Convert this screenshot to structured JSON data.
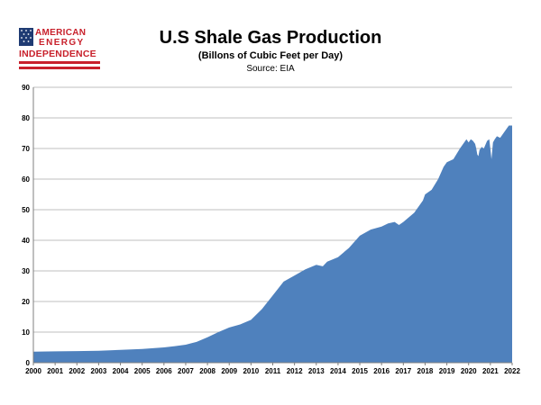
{
  "logo": {
    "line1": "AMERICAN",
    "line2": "ENERGY",
    "line3": "INDEPENDENCE",
    "flag_colors": {
      "blue": "#1f3b73",
      "red": "#c8202b"
    }
  },
  "chart_data": {
    "type": "area",
    "title": "U.S Shale Gas Production",
    "subtitle": "(Billons of Cubic Feet per Day)",
    "source": "Source: EIA",
    "xlabel": "",
    "ylabel": "",
    "xlim": [
      2000,
      2022
    ],
    "ylim": [
      0,
      90
    ],
    "y_ticks": [
      0,
      10,
      20,
      30,
      40,
      50,
      60,
      70,
      80,
      90
    ],
    "x_ticks": [
      "2000",
      "2001",
      "2002",
      "2003",
      "2004",
      "2005",
      "2006",
      "2007",
      "2008",
      "2009",
      "2010",
      "2011",
      "2012",
      "2013",
      "2014",
      "2015",
      "2016",
      "2017",
      "2018",
      "2019",
      "2020",
      "2021",
      "2022"
    ],
    "grid": true,
    "legend": "none",
    "fill_color": "#4f81bd",
    "series": [
      {
        "x": [
          2000,
          2001,
          2002,
          2003,
          2004,
          2005,
          2006,
          2006.5,
          2007,
          2007.5,
          2008,
          2008.5,
          2009,
          2009.5,
          2010,
          2010.5,
          2011,
          2011.5,
          2012,
          2012.5,
          2013,
          2013.3,
          2013.5,
          2014,
          2014.5,
          2015,
          2015.5,
          2016,
          2016.3,
          2016.6,
          2016.8,
          2017,
          2017.5,
          2017.9,
          2018,
          2018.3,
          2018.6,
          2018.85,
          2019,
          2019.3,
          2019.6,
          2019.9,
          2020,
          2020.1,
          2020.2,
          2020.3,
          2020.35,
          2020.4,
          2020.45,
          2020.5,
          2020.6,
          2020.7,
          2020.85,
          2020.95,
          2021.05,
          2021.12,
          2021.2,
          2021.3,
          2021.45,
          2021.6,
          2021.75,
          2021.85,
          2022
        ],
        "y": [
          3.6,
          3.7,
          3.8,
          3.9,
          4.2,
          4.5,
          5.0,
          5.4,
          5.9,
          6.8,
          8.3,
          10.0,
          11.5,
          12.5,
          14.0,
          17.5,
          22.0,
          26.5,
          28.5,
          30.5,
          32.0,
          31.5,
          33.0,
          34.5,
          37.5,
          41.5,
          43.5,
          44.5,
          45.5,
          46.0,
          45.0,
          46.0,
          49.0,
          53.0,
          55.0,
          56.5,
          60.0,
          64.0,
          65.5,
          66.5,
          70.0,
          73.0,
          72.0,
          73.0,
          72.5,
          71.5,
          70.0,
          68.0,
          67.5,
          69.5,
          70.5,
          70.0,
          72.5,
          73.0,
          66.5,
          72.0,
          73.0,
          74.0,
          73.5,
          75.0,
          76.5,
          77.5,
          77.5
        ]
      }
    ]
  }
}
